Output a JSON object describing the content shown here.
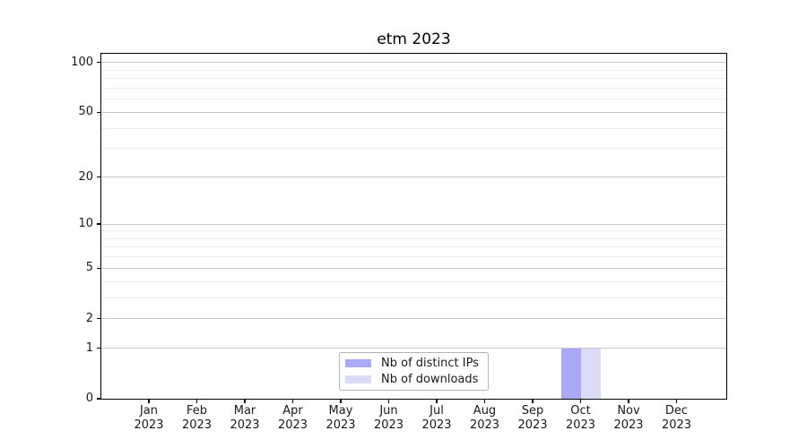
{
  "chart_data": {
    "type": "bar",
    "title": "etm 2023",
    "categories": [
      "Jan",
      "Feb",
      "Mar",
      "Apr",
      "May",
      "Jun",
      "Jul",
      "Aug",
      "Sep",
      "Oct",
      "Nov",
      "Dec"
    ],
    "x_year": "2023",
    "series": [
      {
        "name": "Nb of distinct IPs",
        "color": "#a9a9f7",
        "values": [
          0,
          0,
          0,
          0,
          0,
          0,
          0,
          0,
          0,
          1,
          0,
          0
        ]
      },
      {
        "name": "Nb of downloads",
        "color": "#dcdcf9",
        "values": [
          0,
          0,
          0,
          0,
          0,
          0,
          0,
          0,
          0,
          1,
          0,
          0
        ]
      }
    ],
    "y_axis": {
      "scale": "log1p",
      "major_ticks": [
        0,
        1,
        2,
        5,
        10,
        20,
        50,
        100
      ],
      "minor_gridlines": [
        3,
        4,
        6,
        7,
        8,
        9,
        30,
        40,
        60,
        70,
        80,
        90
      ],
      "ylim": [
        0,
        113
      ]
    },
    "x_axis": {
      "tick_style": "two-line month + year"
    },
    "legend": {
      "position": "lower center"
    },
    "grid": "horizontal",
    "colors": {
      "frame": "#000000",
      "grid_major": "#c9c9c9",
      "grid_minor": "#ececec",
      "text": "#1a1a1a"
    }
  }
}
